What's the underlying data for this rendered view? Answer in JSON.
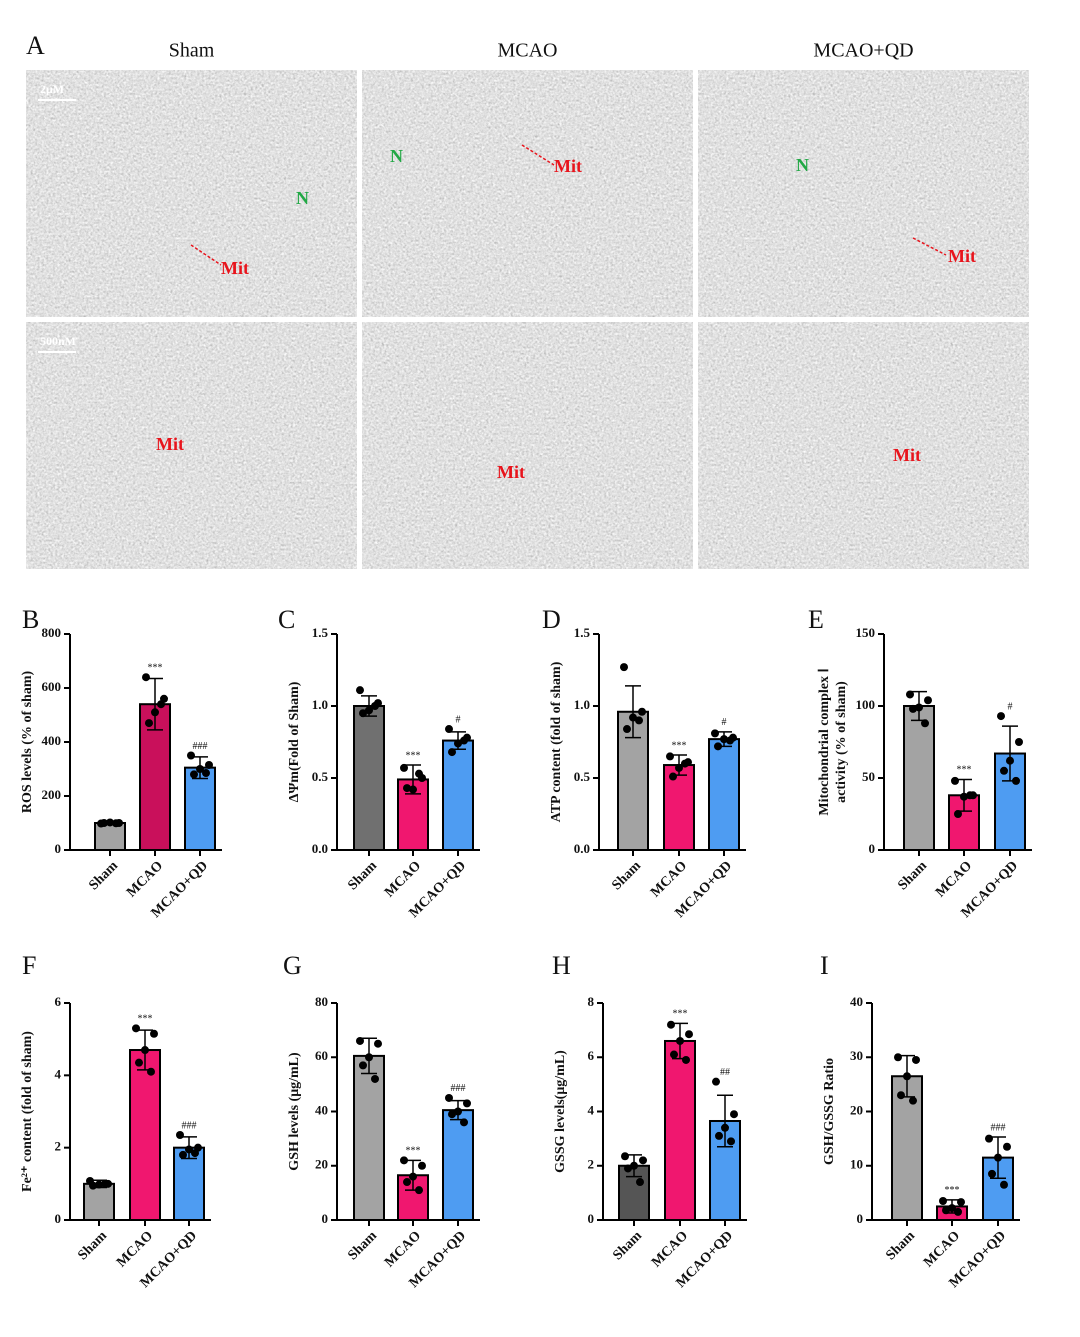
{
  "micrographs": {
    "panel": "A",
    "columns": [
      "Sham",
      "MCAO",
      "MCAO+QD"
    ],
    "scale_bars": [
      "2μM",
      "500nM"
    ],
    "images": [
      {
        "labels": [
          "N",
          "Mit"
        ]
      },
      {
        "labels": [
          "N",
          "Mit"
        ]
      },
      {
        "labels": [
          "N",
          "Mit"
        ]
      },
      {
        "labels": [
          "Mit"
        ]
      },
      {
        "labels": [
          "Mit"
        ]
      },
      {
        "labels": [
          "Mit"
        ]
      }
    ]
  },
  "chart_data": [
    {
      "type": "bar",
      "label": "B",
      "ylabel": [
        "ROS levels (% of sham)"
      ],
      "categories": [
        "Sham",
        "MCAO",
        "MCAO+QD"
      ],
      "values": [
        100,
        540,
        305
      ],
      "errors": [
        5,
        95,
        40
      ],
      "annotations": [
        null,
        "***",
        "###"
      ],
      "points": [
        [
          98,
          100,
          102,
          100,
          99
        ],
        [
          640,
          560,
          510,
          470,
          540
        ],
        [
          350,
          315,
          300,
          280,
          285
        ]
      ],
      "colors": [
        "#a3a3a3",
        "#c9105b",
        "#4e9cf2"
      ],
      "ylim": [
        0,
        800
      ],
      "yticks": [
        0,
        200,
        400,
        600,
        800
      ]
    },
    {
      "type": "bar",
      "label": "C",
      "ylabel": [
        "ΔΨm(Fold of Sham)"
      ],
      "categories": [
        "Sham",
        "MCAO",
        "MCAO+QD"
      ],
      "values": [
        1.0,
        0.49,
        0.76
      ],
      "errors": [
        0.07,
        0.1,
        0.06
      ],
      "annotations": [
        null,
        "***",
        "#"
      ],
      "points": [
        [
          1.11,
          1.02,
          0.97,
          0.95,
          1.0
        ],
        [
          0.57,
          0.5,
          0.42,
          0.43,
          0.53
        ],
        [
          0.84,
          0.78,
          0.74,
          0.68,
          0.76
        ]
      ],
      "colors": [
        "#707070",
        "#f0176f",
        "#4e9cf2"
      ],
      "ylim": [
        0,
        1.5
      ],
      "yticks": [
        {
          "value": 0,
          "label": "0.0"
        },
        0.5,
        {
          "value": 1,
          "label": "1.0"
        },
        1.5
      ]
    },
    {
      "type": "bar",
      "label": "D",
      "ylabel": [
        "ATP content (fold of sham)"
      ],
      "categories": [
        "Sham",
        "MCAO",
        "MCAO+QD"
      ],
      "values": [
        0.96,
        0.59,
        0.77
      ],
      "errors": [
        0.18,
        0.07,
        0.05
      ],
      "annotations": [
        null,
        "***",
        "#"
      ],
      "points": [
        [
          1.27,
          0.96,
          0.92,
          0.84,
          0.9
        ],
        [
          0.65,
          0.61,
          0.57,
          0.51,
          0.6
        ],
        [
          0.81,
          0.78,
          0.77,
          0.72,
          0.76
        ]
      ],
      "colors": [
        "#a3a3a3",
        "#f0176f",
        "#4e9cf2"
      ],
      "ylim": [
        0,
        1.5
      ],
      "yticks": [
        {
          "value": 0,
          "label": "0.0"
        },
        0.5,
        {
          "value": 1,
          "label": "1.0"
        },
        1.5
      ]
    },
    {
      "type": "bar",
      "label": "E",
      "ylabel": [
        "Mitochondrial complex Ⅰ",
        "activity (% of sham)"
      ],
      "categories": [
        "Sham",
        "MCAO",
        "MCAO+QD"
      ],
      "values": [
        100,
        38,
        67
      ],
      "errors": [
        10,
        11,
        19
      ],
      "annotations": [
        null,
        "***",
        "#"
      ],
      "points": [
        [
          108,
          104,
          99,
          98,
          88
        ],
        [
          48,
          38,
          37,
          25,
          38
        ],
        [
          93,
          75,
          62,
          55,
          48
        ]
      ],
      "colors": [
        "#a3a3a3",
        "#f0176f",
        "#4e9cf2"
      ],
      "ylim": [
        0,
        150
      ],
      "yticks": [
        0,
        50,
        100,
        150
      ]
    },
    {
      "type": "bar",
      "label": "F",
      "ylabel": [
        "Fe²⁺ content (fold of sham)"
      ],
      "categories": [
        "Sham",
        "MCAO",
        "MCAO+QD"
      ],
      "values": [
        1.0,
        4.7,
        2.0
      ],
      "errors": [
        0.1,
        0.55,
        0.3
      ],
      "annotations": [
        null,
        "***",
        "###"
      ],
      "points": [
        [
          1.08,
          1.0,
          0.98,
          0.95,
          1.0
        ],
        [
          5.3,
          5.15,
          4.7,
          4.35,
          4.1
        ],
        [
          2.35,
          2.0,
          1.95,
          1.8,
          1.85
        ]
      ],
      "colors": [
        "#a3a3a3",
        "#f0176f",
        "#4e9cf2"
      ],
      "ylim": [
        0,
        6
      ],
      "yticks": [
        0,
        2,
        4,
        6
      ]
    },
    {
      "type": "bar",
      "label": "G",
      "ylabel": [
        "GSH levels (μg/mL)"
      ],
      "categories": [
        "Sham",
        "MCAO",
        "MCAO+QD"
      ],
      "values": [
        60.5,
        16.5,
        40.5
      ],
      "errors": [
        6.5,
        5.5,
        3.5
      ],
      "annotations": [
        null,
        "***",
        "###"
      ],
      "points": [
        [
          66,
          65,
          60,
          57,
          52
        ],
        [
          22,
          20,
          16,
          14,
          11
        ],
        [
          45,
          43,
          40,
          39,
          36
        ]
      ],
      "colors": [
        "#a3a3a3",
        "#f0176f",
        "#4e9cf2"
      ],
      "ylim": [
        0,
        80
      ],
      "yticks": [
        0,
        20,
        40,
        60,
        80
      ]
    },
    {
      "type": "bar",
      "label": "H",
      "ylabel": [
        "GSSG levels(μg/mL)"
      ],
      "categories": [
        "Sham",
        "MCAO",
        "MCAO+QD"
      ],
      "values": [
        2.0,
        6.6,
        3.65
      ],
      "errors": [
        0.4,
        0.65,
        0.95
      ],
      "annotations": [
        null,
        "***",
        "##"
      ],
      "points": [
        [
          2.35,
          2.2,
          2.0,
          1.9,
          1.4
        ],
        [
          7.2,
          6.85,
          6.6,
          6.1,
          5.9
        ],
        [
          5.1,
          3.9,
          3.4,
          3.1,
          2.9
        ]
      ],
      "colors": [
        "#555555",
        "#f0176f",
        "#4e9cf2"
      ],
      "ylim": [
        0,
        8
      ],
      "yticks": [
        0,
        2,
        4,
        6,
        8
      ]
    },
    {
      "type": "bar",
      "label": "I",
      "ylabel": [
        "GSH/GSSG Ratio"
      ],
      "categories": [
        "Sham",
        "MCAO",
        "MCAO+QD"
      ],
      "values": [
        26.5,
        2.5,
        11.5
      ],
      "errors": [
        3.8,
        1.2,
        3.8
      ],
      "annotations": [
        null,
        "***",
        "###"
      ],
      "points": [
        [
          30,
          29.5,
          26.5,
          23,
          22
        ],
        [
          3.5,
          3.3,
          2.2,
          1.8,
          1.5
        ],
        [
          15,
          13.5,
          11.5,
          8.5,
          6.5
        ]
      ],
      "colors": [
        "#a3a3a3",
        "#f0176f",
        "#4e9cf2"
      ],
      "ylim": [
        0,
        40
      ],
      "yticks": [
        0,
        10,
        20,
        30,
        40
      ]
    }
  ]
}
